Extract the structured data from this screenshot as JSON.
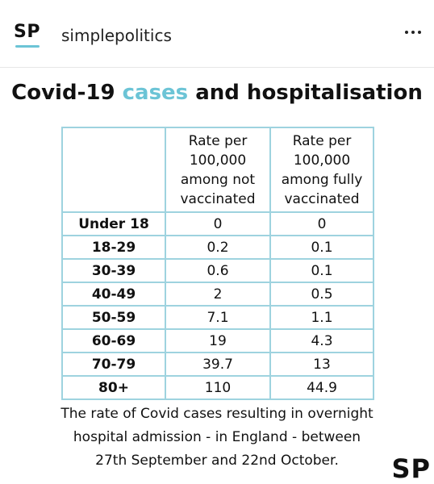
{
  "header": {
    "logo": "SP",
    "account_name": "simplepolitics",
    "more_icon": "more-horizontal-icon",
    "accent_color": "#6cc4d6"
  },
  "title": {
    "part1": "Covid-19",
    "part2": "cases",
    "part3": "and hospitalisation"
  },
  "table": {
    "columns": [
      [
        "Rate per",
        "100,000",
        "among not",
        "vaccinated"
      ],
      [
        "Rate per",
        "100,000",
        "among fully",
        "vaccinated"
      ]
    ],
    "rows": [
      {
        "group": "Under 18",
        "not_vaccinated": "0",
        "fully_vaccinated": "0"
      },
      {
        "group": "18-29",
        "not_vaccinated": "0.2",
        "fully_vaccinated": "0.1"
      },
      {
        "group": "30-39",
        "not_vaccinated": "0.6",
        "fully_vaccinated": "0.1"
      },
      {
        "group": "40-49",
        "not_vaccinated": "2",
        "fully_vaccinated": "0.5"
      },
      {
        "group": "50-59",
        "not_vaccinated": "7.1",
        "fully_vaccinated": "1.1"
      },
      {
        "group": "60-69",
        "not_vaccinated": "19",
        "fully_vaccinated": "4.3"
      },
      {
        "group": "70-79",
        "not_vaccinated": "39.7",
        "fully_vaccinated": "13"
      },
      {
        "group": "80+",
        "not_vaccinated": "110",
        "fully_vaccinated": "44.9"
      }
    ]
  },
  "caption": {
    "lines": [
      "The rate of Covid cases resulting in overnight",
      "hospital admission - in England - between",
      "27th September and 22nd October."
    ]
  },
  "watermark": "SP"
}
